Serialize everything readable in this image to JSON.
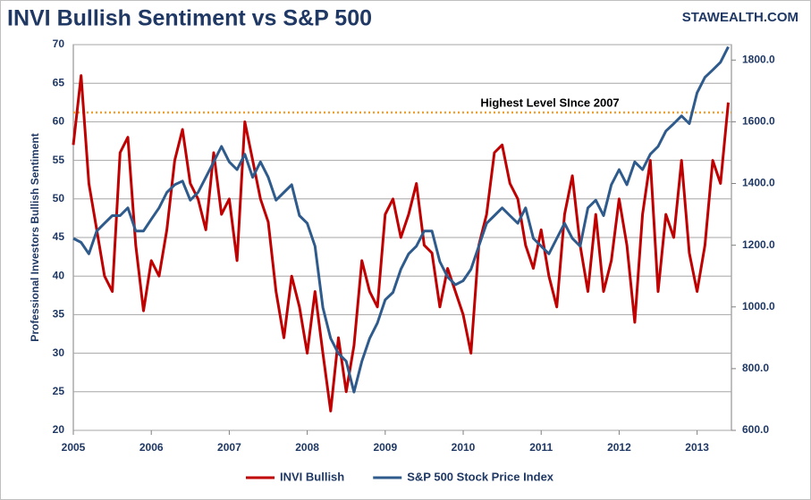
{
  "chart_data": {
    "type": "line",
    "title": "INVI Bullish Sentiment vs S&P 500",
    "watermark": "STAWEALTH.COM",
    "y_label": "Professional Investors Bullish Sentiment",
    "x": [
      2005.0,
      2005.1,
      2005.2,
      2005.3,
      2005.4,
      2005.5,
      2005.6,
      2005.7,
      2005.8,
      2005.9,
      2006.0,
      2006.1,
      2006.2,
      2006.3,
      2006.4,
      2006.5,
      2006.6,
      2006.7,
      2006.8,
      2006.9,
      2007.0,
      2007.1,
      2007.2,
      2007.3,
      2007.4,
      2007.5,
      2007.6,
      2007.7,
      2007.8,
      2007.9,
      2008.0,
      2008.1,
      2008.2,
      2008.3,
      2008.4,
      2008.5,
      2008.6,
      2008.7,
      2008.8,
      2008.9,
      2009.0,
      2009.1,
      2009.2,
      2009.3,
      2009.4,
      2009.5,
      2009.6,
      2009.7,
      2009.8,
      2009.9,
      2010.0,
      2010.1,
      2010.2,
      2010.3,
      2010.4,
      2010.5,
      2010.6,
      2010.7,
      2010.8,
      2010.9,
      2011.0,
      2011.1,
      2011.2,
      2011.3,
      2011.4,
      2011.5,
      2011.6,
      2011.7,
      2011.8,
      2011.9,
      2012.0,
      2012.1,
      2012.2,
      2012.3,
      2012.4,
      2012.5,
      2012.6,
      2012.7,
      2012.8,
      2012.9,
      2013.0,
      2013.1,
      2013.2,
      2013.3,
      2013.4
    ],
    "series": [
      {
        "name": "INVI Bullish",
        "color": "#c00000",
        "axis": "y",
        "values": [
          57,
          66,
          52,
          46,
          40,
          38,
          56,
          58,
          44,
          35.5,
          42,
          40,
          46,
          55,
          59,
          52,
          50,
          46,
          56,
          48,
          50,
          42,
          60,
          55,
          50,
          47,
          38,
          32,
          40,
          36,
          30,
          38,
          30,
          22.5,
          32,
          25,
          31,
          42,
          38,
          36,
          48,
          50,
          45,
          48,
          52,
          44,
          43,
          36,
          41,
          38,
          35,
          30,
          44,
          48,
          56,
          57,
          52,
          50,
          44,
          41,
          46,
          40,
          36,
          48,
          53,
          44,
          38,
          48,
          38,
          42,
          50,
          44,
          34,
          48,
          55,
          38,
          48,
          45,
          55,
          43,
          38,
          44,
          55,
          52,
          62.5
        ]
      },
      {
        "name": "S&P 500 Stock Price Index",
        "color": "#2f5b8c",
        "axis": "y2",
        "values": [
          1222,
          1209,
          1172,
          1246,
          1271,
          1296,
          1296,
          1321,
          1246,
          1246,
          1284,
          1321,
          1371,
          1396,
          1408,
          1346,
          1371,
          1420,
          1470,
          1520,
          1470,
          1445,
          1495,
          1420,
          1470,
          1420,
          1346,
          1371,
          1396,
          1296,
          1271,
          1197,
          998,
          898,
          849,
          824,
          724,
          824,
          898,
          948,
          1023,
          1047,
          1122,
          1172,
          1197,
          1246,
          1246,
          1147,
          1097,
          1072,
          1085,
          1122,
          1197,
          1271,
          1296,
          1321,
          1296,
          1271,
          1321,
          1222,
          1197,
          1172,
          1222,
          1271,
          1222,
          1197,
          1321,
          1346,
          1296,
          1396,
          1445,
          1396,
          1470,
          1445,
          1495,
          1520,
          1570,
          1594,
          1619,
          1594,
          1694,
          1744,
          1768,
          1793,
          1843
        ]
      }
    ],
    "reference_line": {
      "value": 61.2,
      "label": "Highest Level SInce 2007",
      "color": "#f0a030"
    },
    "xlim": [
      2005,
      2013.44
    ],
    "xticks": [
      2005,
      2006,
      2007,
      2008,
      2009,
      2010,
      2011,
      2012,
      2013
    ],
    "ylim": [
      20,
      70
    ],
    "yticks": [
      20,
      25,
      30,
      35,
      40,
      45,
      50,
      55,
      60,
      65,
      70
    ],
    "y2lim": [
      600,
      1850
    ],
    "y2ticks": [
      {
        "value": 600,
        "label": "600.0"
      },
      {
        "value": 800,
        "label": "800.0"
      },
      {
        "value": 1000,
        "label": "1000.0"
      },
      {
        "value": 1200,
        "label": "1200.0"
      },
      {
        "value": 1400,
        "label": "1400.0"
      },
      {
        "value": 1600,
        "label": "1600.0"
      },
      {
        "value": 1800,
        "label": "1800.0"
      }
    ],
    "grid": true,
    "legend": "bottom"
  }
}
